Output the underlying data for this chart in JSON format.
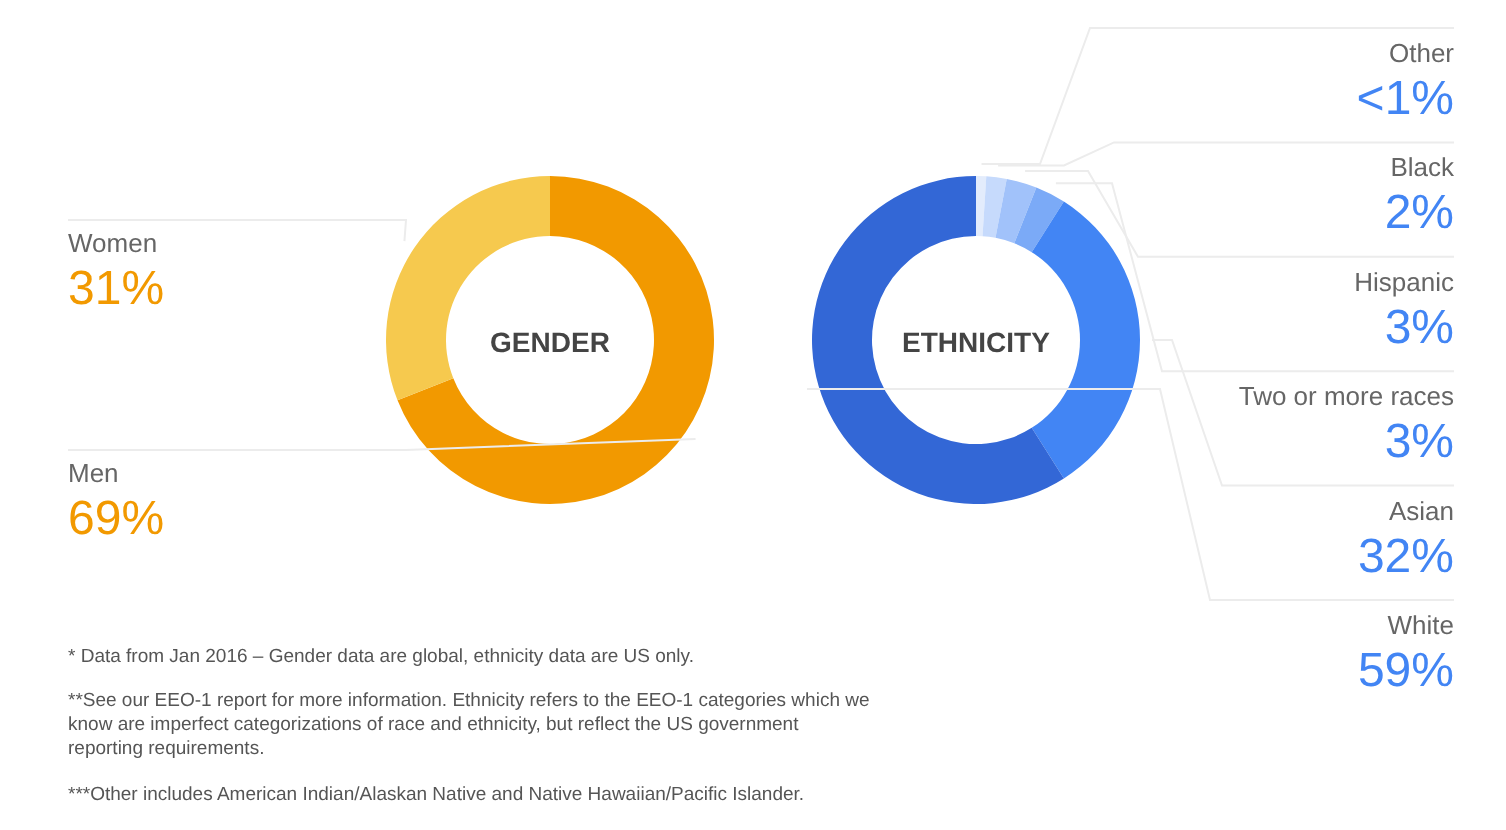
{
  "chart_data": [
    {
      "type": "donut",
      "title": "GENDER",
      "categories": [
        "Men",
        "Women"
      ],
      "values": [
        69,
        31
      ],
      "colors": [
        "#f29900",
        "#f6c94e"
      ],
      "value_labels": [
        "69%",
        "31%"
      ]
    },
    {
      "type": "donut",
      "title": "ETHNICITY",
      "categories": [
        "Other",
        "Black",
        "Hispanic",
        "Two or more races",
        "Asian",
        "White"
      ],
      "values": [
        1,
        2,
        3,
        3,
        32,
        59
      ],
      "colors": [
        "#e3ecfc",
        "#c6dafc",
        "#a1c2fa",
        "#7baaf7",
        "#4285f4",
        "#3367d6"
      ],
      "value_labels": [
        "<1%",
        "2%",
        "3%",
        "3%",
        "32%",
        "59%"
      ],
      "annotations": [
        "* Data from Jan 2016 – Gender data are global, ethnicity data are US only.",
        "**See our EEO-1 report for more information. Ethnicity refers to the EEO-1 categories which we know are imperfect categorizations of race and ethnicity, but reflect the US government reporting requirements.",
        "***Other includes American Indian/Alaskan Native and Native Hawaiian/Pacific Islander."
      ]
    }
  ]
}
